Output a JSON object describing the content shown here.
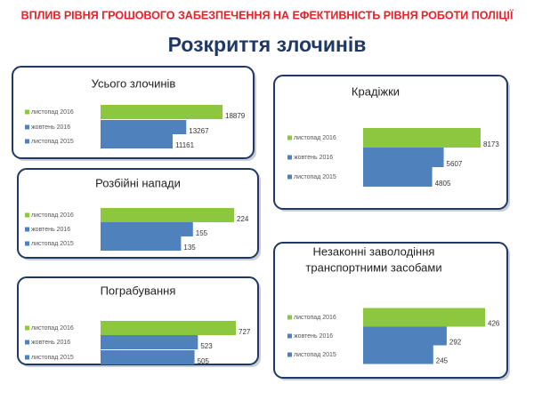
{
  "header": {
    "title": "ВПЛИВ РІВНЯ ГРОШОВОГО ЗАБЕЗПЕЧЕННЯ НА ЕФЕКТИВНІСТЬ РІВНЯ РОБОТИ ПОЛІЦІЇ",
    "subtitle": "Розкриття злочинів"
  },
  "chart_data": [
    {
      "type": "bar",
      "orientation": "horizontal",
      "title": [
        "Усього злочинів"
      ],
      "categories": [
        "листопад 2016",
        "жовтень 2016",
        "листопад 2015"
      ],
      "values": [
        18879,
        13267,
        11161
      ],
      "colors": [
        "#8dc63f",
        "#4f81bd",
        "#4f81bd"
      ]
    },
    {
      "type": "bar",
      "orientation": "horizontal",
      "title": [
        "Розбійні напади"
      ],
      "categories": [
        "листопад 2016",
        "жовтень 2016",
        "листопад 2015"
      ],
      "values": [
        224,
        155,
        135
      ],
      "colors": [
        "#8dc63f",
        "#4f81bd",
        "#4f81bd"
      ]
    },
    {
      "type": "bar",
      "orientation": "horizontal",
      "title": [
        "Пограбування"
      ],
      "categories": [
        "листопад 2016",
        "жовтень 2016",
        "листопад 2015"
      ],
      "values": [
        727,
        523,
        505
      ],
      "colors": [
        "#8dc63f",
        "#4f81bd",
        "#4f81bd"
      ]
    },
    {
      "type": "bar",
      "orientation": "horizontal",
      "title": [
        "Крадіжки"
      ],
      "categories": [
        "листопад 2016",
        "жовтень 2016",
        "листопад 2015"
      ],
      "values": [
        8173,
        5607,
        4805
      ],
      "colors": [
        "#8dc63f",
        "#4f81bd",
        "#4f81bd"
      ]
    },
    {
      "type": "bar",
      "orientation": "horizontal",
      "title": [
        "Незаконні заволодіння",
        "транспортними засобами"
      ],
      "categories": [
        "листопад 2016",
        "жовтень 2016",
        "листопад 2015"
      ],
      "values": [
        426,
        292,
        245
      ],
      "colors": [
        "#8dc63f",
        "#4f81bd",
        "#4f81bd"
      ]
    }
  ]
}
